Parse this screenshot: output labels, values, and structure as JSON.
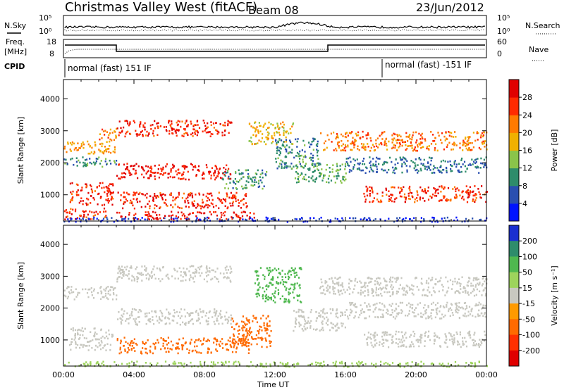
{
  "header": {
    "station": "Christmas Valley West (fitACF)",
    "beam": "Beam 08",
    "date": "23/Jun/2012"
  },
  "panels": {
    "nsky_label": "N.Sky",
    "nsearch_label": "N.Search",
    "freq_label_line1": "Freq.",
    "freq_label_line2": "[MHz]",
    "nave_label": "Nave",
    "cpid_label": "CPID",
    "nsky_ticks": [
      "10^5",
      "10^0"
    ],
    "nsearch_ticks": [
      "10^5",
      "10^0"
    ],
    "freq_ticks": [
      "18",
      "8"
    ],
    "nave_ticks": [
      "60",
      "0"
    ],
    "cpid_segments": [
      {
        "text": "normal (fast) 151 IF",
        "start_hour": 0
      },
      {
        "text": "normal (fast) -151 IF",
        "start_hour": 18
      }
    ]
  },
  "chart_data": [
    {
      "type": "heatmap",
      "name": "power",
      "ylabel": "Slant Range [km]",
      "xlabel": "Time UT",
      "x_ticks": [
        "00:00",
        "04:00",
        "08:00",
        "12:00",
        "16:00",
        "20:00",
        "00:00"
      ],
      "y_ticks": [
        1000,
        2000,
        3000,
        4000
      ],
      "ylim": [
        180,
        4600
      ],
      "xlim_hours": [
        0,
        24
      ],
      "colorbar": {
        "label": "Power [dB]",
        "ticks": [
          4,
          8,
          12,
          16,
          20,
          24,
          28
        ],
        "colors": [
          "#0014ff",
          "#2a4fb0",
          "#2e8c6b",
          "#8ac44a",
          "#f0b000",
          "#ff7a00",
          "#ff2a00",
          "#e00000"
        ]
      },
      "bands": [
        {
          "t": [
            0.0,
            3.0
          ],
          "r": [
            2300,
            2700
          ],
          "value": 20
        },
        {
          "t": [
            0.0,
            3.0
          ],
          "r": [
            1900,
            2200
          ],
          "value": 10
        },
        {
          "t": [
            0.3,
            2.8
          ],
          "r": [
            700,
            1400
          ],
          "value": 27
        },
        {
          "t": [
            0.0,
            2.5
          ],
          "r": [
            250,
            600
          ],
          "value": 26
        },
        {
          "t": [
            2.0,
            3.0
          ],
          "r": [
            2700,
            3100
          ],
          "value": 22
        },
        {
          "t": [
            3.0,
            9.5
          ],
          "r": [
            2850,
            3350
          ],
          "value": 27
        },
        {
          "t": [
            3.0,
            9.5
          ],
          "r": [
            1500,
            2000
          ],
          "value": 28
        },
        {
          "t": [
            3.0,
            10.5
          ],
          "r": [
            600,
            1100
          ],
          "value": 27
        },
        {
          "t": [
            3.0,
            11.0
          ],
          "r": [
            250,
            500
          ],
          "value": 28
        },
        {
          "t": [
            9.0,
            11.5
          ],
          "r": [
            1200,
            1800
          ],
          "value": 10
        },
        {
          "t": [
            10.5,
            13.0
          ],
          "r": [
            2600,
            3300
          ],
          "value": 18
        },
        {
          "t": [
            12.0,
            14.5
          ],
          "r": [
            1800,
            2800
          ],
          "value": 9
        },
        {
          "t": [
            13.0,
            16.0
          ],
          "r": [
            1400,
            2000
          ],
          "value": 12
        },
        {
          "t": [
            14.5,
            24.0
          ],
          "r": [
            2400,
            3000
          ],
          "value": 22
        },
        {
          "t": [
            16.0,
            24.0
          ],
          "r": [
            1700,
            2200
          ],
          "value": 8
        },
        {
          "t": [
            17.0,
            24.0
          ],
          "r": [
            800,
            1300
          ],
          "value": 26
        },
        {
          "t": [
            0.0,
            24.0
          ],
          "r": [
            180,
            320
          ],
          "value": 4
        }
      ]
    },
    {
      "type": "heatmap",
      "name": "velocity",
      "ylabel": "Slant Range [km]",
      "xlabel": "Time UT",
      "x_ticks": [
        "00:00",
        "04:00",
        "08:00",
        "12:00",
        "16:00",
        "20:00",
        "00:00"
      ],
      "y_ticks": [
        1000,
        2000,
        3000,
        4000
      ],
      "ylim": [
        180,
        4600
      ],
      "xlim_hours": [
        0,
        24
      ],
      "colorbar": {
        "label": "Velocity [m s⁻¹]",
        "ticks": [
          200,
          100,
          50,
          15,
          -15,
          -50,
          -100,
          -200
        ],
        "colors": [
          "#1a2fd0",
          "#2e8c6b",
          "#4fb84f",
          "#9dd35c",
          "#c8c8c0",
          "#ff9a00",
          "#ff6a00",
          "#ff3000",
          "#e00000"
        ]
      },
      "bands": [
        {
          "t": [
            0.0,
            3.0
          ],
          "r": [
            2300,
            2700
          ],
          "value": 0
        },
        {
          "t": [
            0.3,
            2.8
          ],
          "r": [
            700,
            1400
          ],
          "value": 0
        },
        {
          "t": [
            3.0,
            9.5
          ],
          "r": [
            2850,
            3350
          ],
          "value": 0
        },
        {
          "t": [
            3.0,
            9.5
          ],
          "r": [
            1500,
            2000
          ],
          "value": 0
        },
        {
          "t": [
            3.0,
            10.5
          ],
          "r": [
            600,
            1100
          ],
          "value": -60
        },
        {
          "t": [
            9.5,
            11.8
          ],
          "r": [
            800,
            1800
          ],
          "value": -90
        },
        {
          "t": [
            10.8,
            13.5
          ],
          "r": [
            2200,
            3300
          ],
          "value": 60
        },
        {
          "t": [
            13.0,
            16.0
          ],
          "r": [
            1300,
            2000
          ],
          "value": 0
        },
        {
          "t": [
            14.5,
            24.0
          ],
          "r": [
            2400,
            3000
          ],
          "value": 0
        },
        {
          "t": [
            16.0,
            24.0
          ],
          "r": [
            1700,
            2200
          ],
          "value": 0
        },
        {
          "t": [
            17.0,
            24.0
          ],
          "r": [
            800,
            1300
          ],
          "value": 0
        },
        {
          "t": [
            0.0,
            24.0
          ],
          "r": [
            180,
            350
          ],
          "value": 40
        }
      ]
    }
  ]
}
